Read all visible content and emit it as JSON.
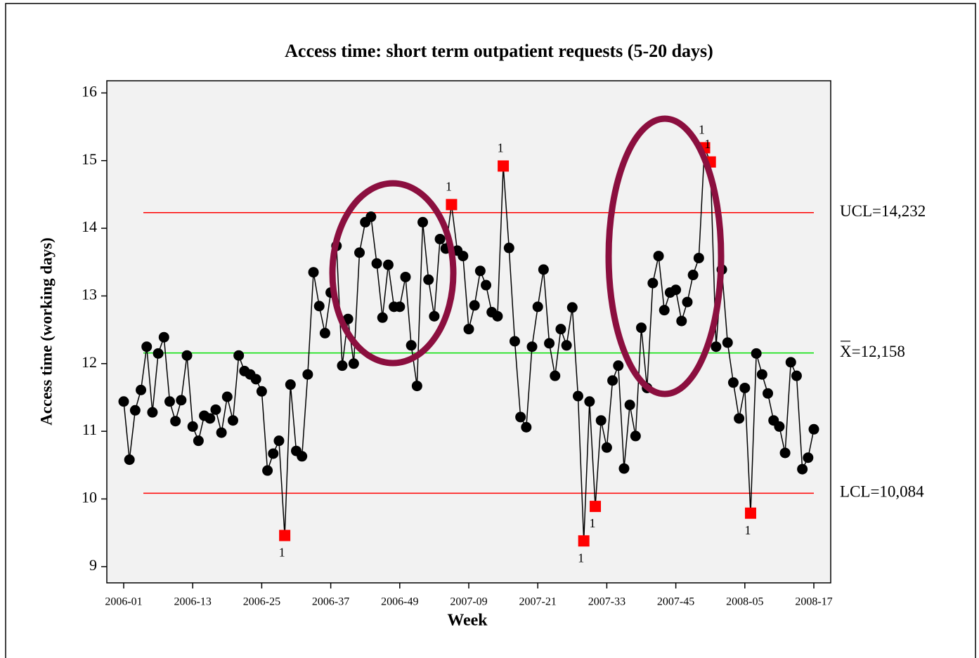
{
  "chart_data": {
    "type": "control",
    "title": "Access time: short term outpatient requests (5-20 days)",
    "x_label": "Week",
    "y_label": "Access time (working days)",
    "categories": [
      "2006-01",
      null,
      null,
      null,
      null,
      null,
      null,
      null,
      null,
      null,
      null,
      null,
      "2006-13",
      null,
      null,
      null,
      null,
      null,
      null,
      null,
      null,
      null,
      null,
      null,
      "2006-25",
      null,
      null,
      null,
      null,
      null,
      null,
      null,
      null,
      null,
      null,
      null,
      "2006-37",
      null,
      null,
      null,
      null,
      null,
      null,
      null,
      null,
      null,
      null,
      null,
      "2006-49",
      null,
      null,
      null,
      null,
      null,
      null,
      null,
      null,
      null,
      null,
      null,
      "2007-09",
      null,
      null,
      null,
      null,
      null,
      null,
      null,
      null,
      null,
      null,
      null,
      "2007-21",
      null,
      null,
      null,
      null,
      null,
      null,
      null,
      null,
      null,
      null,
      null,
      "2007-33",
      null,
      null,
      null,
      null,
      null,
      null,
      null,
      null,
      null,
      null,
      null,
      "2007-45",
      null,
      null,
      null,
      null,
      null,
      null,
      null,
      null,
      null,
      null,
      null,
      "2008-05",
      null,
      null,
      null,
      null,
      null,
      null,
      null,
      null,
      null,
      null,
      null,
      "2008-17"
    ],
    "values": [
      11.44,
      10.58,
      11.31,
      11.61,
      12.25,
      11.28,
      12.15,
      12.39,
      11.44,
      11.15,
      11.46,
      12.12,
      11.07,
      10.86,
      11.23,
      11.19,
      11.32,
      10.98,
      11.51,
      11.16,
      12.12,
      11.89,
      11.84,
      11.77,
      11.59,
      10.42,
      10.67,
      10.86,
      9.46,
      11.69,
      10.71,
      10.63,
      11.84,
      13.35,
      12.85,
      12.45,
      13.05,
      13.74,
      11.97,
      12.66,
      12.0,
      13.64,
      14.09,
      14.17,
      13.48,
      12.68,
      13.46,
      12.84,
      12.84,
      13.28,
      12.27,
      11.67,
      14.09,
      13.24,
      12.7,
      13.84,
      13.7,
      14.35,
      13.67,
      13.59,
      12.51,
      12.86,
      13.37,
      13.16,
      12.76,
      12.7,
      14.92,
      13.71,
      12.33,
      11.21,
      11.06,
      12.25,
      12.84,
      13.39,
      12.3,
      11.82,
      12.51,
      12.27,
      12.83,
      11.52,
      9.38,
      11.44,
      9.89,
      11.16,
      10.76,
      11.75,
      11.97,
      10.45,
      11.39,
      10.93,
      12.53,
      11.64,
      13.19,
      13.59,
      12.79,
      13.05,
      13.09,
      12.63,
      12.91,
      13.31,
      13.56,
      15.19,
      14.98,
      12.25,
      13.39,
      12.31,
      11.72,
      11.19,
      11.64,
      9.79,
      12.15,
      11.84,
      11.56,
      11.16,
      11.07,
      10.68,
      12.02,
      11.82,
      10.44,
      10.61,
      11.03
    ],
    "color": "#000000",
    "signal_color": "#ff0000",
    "signal_label": "1",
    "limits": [
      {
        "name": "UCL",
        "value": 14.232,
        "label": "UCL=14,232",
        "color": "#ff0000"
      },
      {
        "name": "mean",
        "value": 12.158,
        "label": "X=12,158",
        "color": "#00e000"
      },
      {
        "name": "LCL",
        "value": 10.084,
        "label": "LCL=10,084",
        "color": "#ff0000"
      }
    ],
    "ylim": [
      8.76,
      16.18
    ],
    "yticks": [
      9,
      10,
      11,
      12,
      13,
      14,
      15,
      16
    ]
  }
}
